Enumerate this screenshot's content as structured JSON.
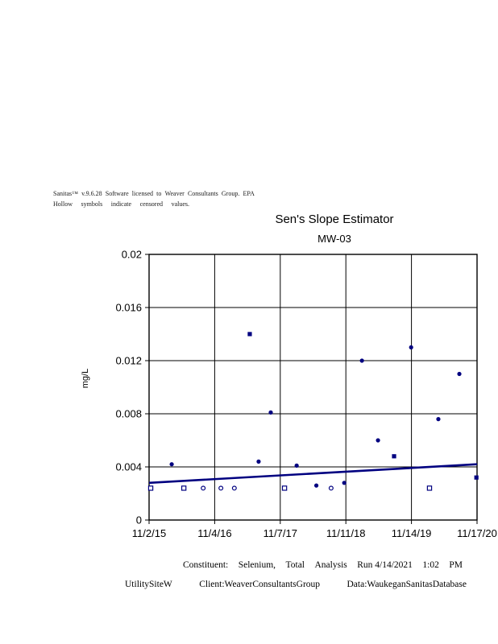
{
  "header": {
    "line1_words": [
      "Sanitas™",
      "v.9.6.28",
      "Software",
      "licensed",
      "to",
      "Weaver",
      "Consultants",
      "Group.",
      "EPA"
    ],
    "line2_words": [
      "Hollow",
      "symbols",
      "indicate",
      "censored",
      "values."
    ]
  },
  "footer": {
    "line1_words": [
      "Constituent:",
      "Selenium,",
      "Total",
      "Analysis",
      "Run 4/14/2021",
      "1:02",
      "PM"
    ],
    "line2_items": [
      "UtilitySiteW",
      "Client:WeaverConsultantsGroup",
      "Data:WaukeganSanitasDatabase"
    ]
  },
  "chart_data": {
    "type": "scatter",
    "title": "Sen's Slope Estimator",
    "subtitle": "MW-03",
    "ylabel": "mg/L",
    "xlabel": "",
    "ylim": [
      0,
      0.02
    ],
    "yticks": [
      0,
      0.004,
      0.008,
      0.012,
      0.016,
      0.02
    ],
    "ytick_labels": [
      "0",
      "0.004",
      "0.008",
      "0.012",
      "0.016",
      "0.02"
    ],
    "xtick_labels": [
      "11/2/15",
      "11/4/16",
      "11/7/17",
      "11/11/18",
      "11/14/19",
      "11/17/20"
    ],
    "grid": true,
    "legend_position": "none",
    "marker_color": "#000080",
    "grid_color": "#000000",
    "series": [
      {
        "name": "detected-values",
        "marker_fill": "filled",
        "points": [
          {
            "x_frac": 0.069,
            "date_est": "3/2016",
            "value": 0.0042,
            "shape": "circle"
          },
          {
            "x_frac": 0.307,
            "date_est": "5/2017",
            "value": 0.014,
            "shape": "square"
          },
          {
            "x_frac": 0.334,
            "date_est": "7/2017",
            "value": 0.0044,
            "shape": "circle"
          },
          {
            "x_frac": 0.371,
            "date_est": "9/2017",
            "value": 0.0081,
            "shape": "circle"
          },
          {
            "x_frac": 0.45,
            "date_est": "2/2018",
            "value": 0.0041,
            "shape": "circle"
          },
          {
            "x_frac": 0.51,
            "date_est": "5/2018",
            "value": 0.0026,
            "shape": "circle"
          },
          {
            "x_frac": 0.595,
            "date_est": "11/2018",
            "value": 0.0028,
            "shape": "circle"
          },
          {
            "x_frac": 0.649,
            "date_est": "2/2019",
            "value": 0.012,
            "shape": "circle"
          },
          {
            "x_frac": 0.698,
            "date_est": "5/2019",
            "value": 0.006,
            "shape": "circle"
          },
          {
            "x_frac": 0.747,
            "date_est": "8/2019",
            "value": 0.0048,
            "shape": "square"
          },
          {
            "x_frac": 0.799,
            "date_est": "11/2019",
            "value": 0.013,
            "shape": "circle"
          },
          {
            "x_frac": 0.882,
            "date_est": "4/2020",
            "value": 0.0076,
            "shape": "circle"
          },
          {
            "x_frac": 0.946,
            "date_est": "8/2020",
            "value": 0.011,
            "shape": "circle"
          },
          {
            "x_frac": 0.998,
            "date_est": "11/2020",
            "value": 0.0032,
            "shape": "square"
          }
        ]
      },
      {
        "name": "censored-values",
        "marker_fill": "hollow",
        "points": [
          {
            "x_frac": 0.005,
            "date_est": "11/2015",
            "value": 0.0024,
            "shape": "square"
          },
          {
            "x_frac": 0.106,
            "date_est": "5/2016",
            "value": 0.0024,
            "shape": "square"
          },
          {
            "x_frac": 0.165,
            "date_est": "9/2016",
            "value": 0.0024,
            "shape": "circle"
          },
          {
            "x_frac": 0.219,
            "date_est": "12/2016",
            "value": 0.0024,
            "shape": "circle"
          },
          {
            "x_frac": 0.26,
            "date_est": "2/2017",
            "value": 0.0024,
            "shape": "circle"
          },
          {
            "x_frac": 0.413,
            "date_est": "12/2017",
            "value": 0.0024,
            "shape": "square"
          },
          {
            "x_frac": 0.555,
            "date_est": "8/2018",
            "value": 0.0024,
            "shape": "circle"
          },
          {
            "x_frac": 0.855,
            "date_est": "2/2020",
            "value": 0.0024,
            "shape": "square"
          }
        ]
      }
    ],
    "trend_line": {
      "name": "sens-slope-line",
      "color": "#000080",
      "start": {
        "x_frac": 0,
        "value": 0.0028
      },
      "end": {
        "x_frac": 1,
        "value": 0.0042
      }
    }
  }
}
